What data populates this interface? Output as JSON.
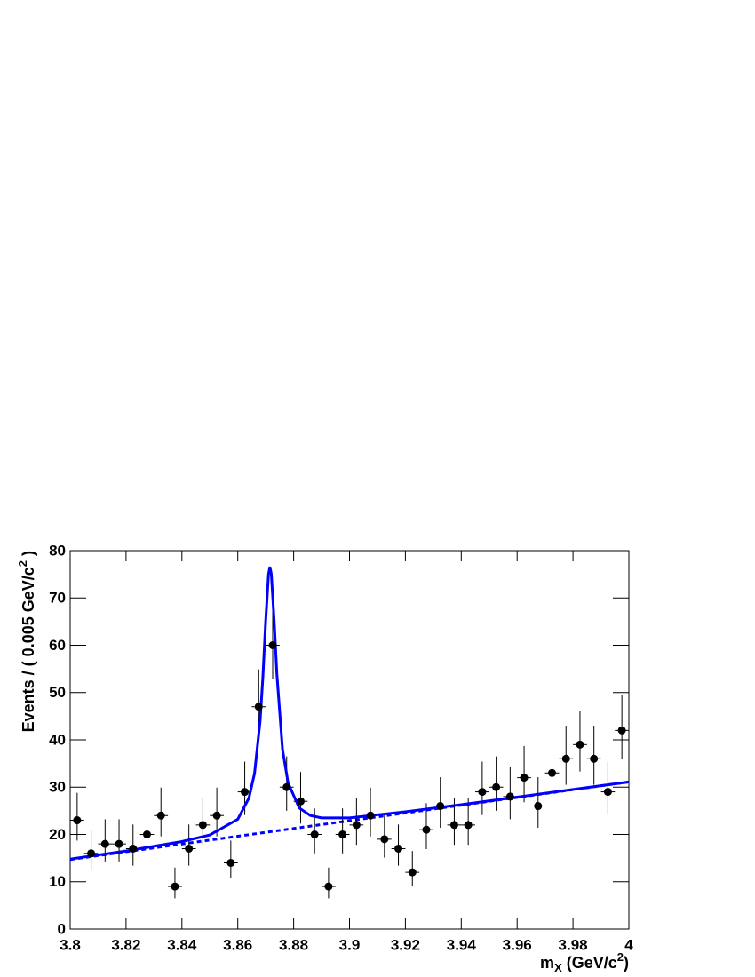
{
  "chart_data": {
    "type": "scatter",
    "x_label": {
      "main": "m",
      "sub": "X",
      "unit": " (GeV/c",
      "sup": "2",
      "end": ")"
    },
    "y_label": {
      "main": "Events / ( 0.005 GeV/c",
      "sup": "2",
      "end": " )"
    },
    "xlim": [
      3.8,
      4.0
    ],
    "ylim": [
      0,
      80
    ],
    "xticks": [
      3.8,
      3.82,
      3.84,
      3.86,
      3.88,
      3.9,
      3.92,
      3.94,
      3.96,
      3.98,
      4
    ],
    "yticks": [
      0,
      10,
      20,
      30,
      40,
      50,
      60,
      70,
      80
    ],
    "points": {
      "color": "#000000",
      "xerr": 0.0025,
      "x": [
        3.8025,
        3.8075,
        3.8125,
        3.8175,
        3.8225,
        3.8275,
        3.8325,
        3.8375,
        3.8425,
        3.8475,
        3.8525,
        3.8575,
        3.8625,
        3.8675,
        3.8725,
        3.8775,
        3.8825,
        3.8875,
        3.8925,
        3.8975,
        3.9025,
        3.9075,
        3.9125,
        3.9175,
        3.9225,
        3.9275,
        3.9325,
        3.9375,
        3.9425,
        3.9475,
        3.9525,
        3.9575,
        3.9625,
        3.9675,
        3.9725,
        3.9775,
        3.9825,
        3.9875,
        3.9925,
        3.9975
      ],
      "values": [
        23,
        16,
        18,
        18,
        17,
        20,
        24,
        9,
        17,
        22,
        24,
        14,
        29,
        47,
        60,
        30,
        27,
        20,
        9,
        20,
        22,
        24,
        19,
        17,
        12,
        21,
        26,
        22,
        22,
        29,
        30,
        28,
        32,
        26,
        33,
        36,
        39,
        36,
        29,
        42
      ],
      "yerr_low": [
        4.3,
        3.5,
        3.7,
        3.7,
        3.6,
        4.0,
        4.4,
        2.5,
        3.6,
        4.2,
        4.4,
        3.2,
        4.9,
        6.4,
        7.2,
        5.0,
        4.7,
        4.0,
        2.5,
        4.0,
        4.2,
        4.4,
        3.9,
        3.6,
        3.0,
        4.1,
        4.6,
        4.2,
        4.2,
        4.9,
        5.0,
        4.8,
        5.2,
        4.6,
        5.2,
        5.5,
        5.7,
        5.5,
        4.9,
        6.0
      ],
      "yerr_high": [
        5.8,
        5.0,
        5.2,
        5.2,
        5.1,
        5.5,
        5.9,
        4.0,
        5.1,
        5.7,
        5.9,
        4.7,
        6.4,
        7.9,
        8.7,
        6.5,
        6.2,
        5.5,
        4.0,
        5.5,
        5.7,
        5.9,
        5.4,
        5.1,
        4.5,
        5.6,
        6.1,
        5.7,
        5.7,
        6.4,
        6.5,
        6.3,
        6.7,
        6.1,
        6.7,
        7.0,
        7.2,
        7.0,
        6.4,
        7.5
      ]
    },
    "fit": {
      "color": "#0000ff",
      "x": [
        3.8,
        3.82,
        3.84,
        3.85,
        3.86,
        3.864,
        3.866,
        3.868,
        3.869,
        3.87,
        3.871,
        3.8715,
        3.872,
        3.873,
        3.874,
        3.876,
        3.878,
        3.882,
        3.886,
        3.89,
        3.9,
        3.92,
        3.94,
        3.96,
        3.98,
        4.0
      ],
      "values": [
        14.8,
        16.5,
        18.5,
        19.9,
        23.2,
        27.7,
        32.9,
        44.0,
        53.4,
        65.2,
        75.0,
        76.6,
        75.1,
        65.5,
        53.9,
        38.1,
        30.9,
        25.6,
        24.0,
        23.5,
        23.5,
        24.8,
        26.3,
        27.9,
        29.5,
        31.1
      ]
    },
    "background": {
      "color": "#0000ff",
      "dashed": true,
      "x": [
        3.8,
        4.0
      ],
      "values": [
        14.7,
        31.1
      ]
    }
  }
}
